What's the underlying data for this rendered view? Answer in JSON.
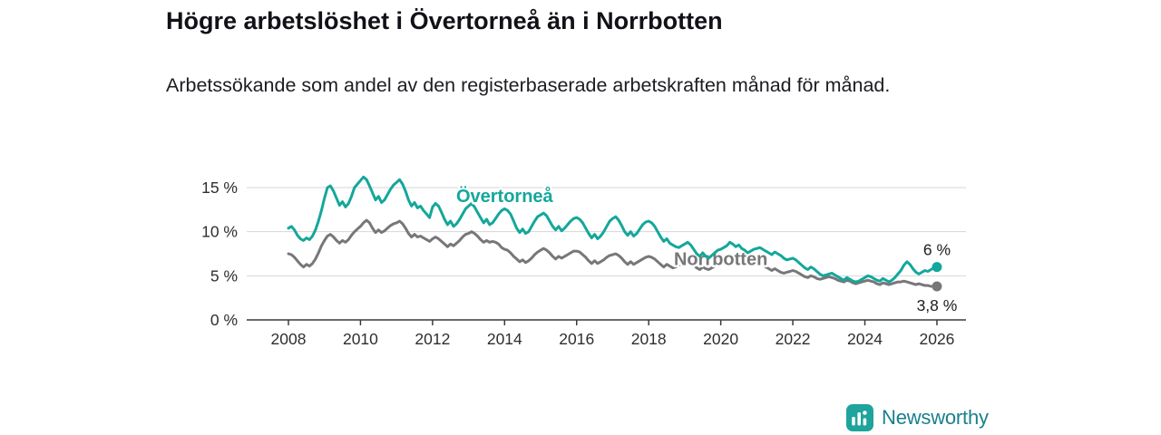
{
  "header": {
    "title": "Högre arbetslöshet i Övertorneå än i Norrbotten",
    "subtitle": "Arbetssökande som andel av den registerbaserade arbetskraften månad för månad."
  },
  "brand": {
    "name": "Newsworthy",
    "icon_color": "#1fa4a0",
    "icon_hex": "#1da49c",
    "text_hex": "#1a7f8e"
  },
  "chart_data": {
    "type": "line",
    "title": "Högre arbetslöshet i Övertorneå än i Norrbotten",
    "x_start_year": 2008,
    "points_per_year": 12,
    "x_ticks": [
      2008,
      2010,
      2012,
      2014,
      2016,
      2018,
      2020,
      2022,
      2024,
      2026
    ],
    "y_ticks": [
      0,
      5,
      10,
      15
    ],
    "y_tick_suffix": " %",
    "ylim": [
      0,
      17
    ],
    "grid": true,
    "axis_color": "#3a3a3e",
    "grid_color": "#d6d6d8",
    "series": [
      {
        "name": "Norrbotten",
        "color": "#77777a",
        "label": {
          "x": 2020.0,
          "y": 6.2
        },
        "end_label": "3,8 %",
        "end_label_dy": 27,
        "values": [
          7.5,
          7.4,
          7.1,
          6.7,
          6.3,
          6.0,
          6.3,
          6.1,
          6.4,
          6.9,
          7.6,
          8.4,
          9.0,
          9.5,
          9.7,
          9.4,
          9.0,
          8.7,
          9.0,
          8.8,
          9.1,
          9.6,
          10.0,
          10.3,
          10.6,
          11.0,
          11.3,
          11.0,
          10.4,
          9.9,
          10.2,
          9.9,
          10.1,
          10.4,
          10.7,
          10.9,
          11.0,
          11.2,
          10.9,
          10.4,
          9.8,
          9.4,
          9.7,
          9.4,
          9.5,
          9.3,
          9.1,
          8.9,
          9.2,
          9.4,
          9.2,
          8.9,
          8.6,
          8.3,
          8.6,
          8.4,
          8.7,
          9.0,
          9.4,
          9.7,
          9.8,
          10.0,
          9.8,
          9.5,
          9.1,
          8.8,
          9.0,
          8.8,
          8.9,
          8.8,
          8.6,
          8.2,
          8.0,
          7.9,
          7.6,
          7.2,
          6.9,
          6.6,
          6.8,
          6.5,
          6.7,
          7.0,
          7.4,
          7.7,
          7.9,
          8.1,
          7.9,
          7.6,
          7.2,
          6.9,
          7.2,
          7.0,
          7.2,
          7.4,
          7.6,
          7.8,
          7.8,
          7.7,
          7.4,
          7.1,
          6.7,
          6.4,
          6.7,
          6.4,
          6.6,
          6.8,
          7.1,
          7.3,
          7.4,
          7.5,
          7.3,
          7.0,
          6.6,
          6.3,
          6.6,
          6.3,
          6.5,
          6.7,
          6.9,
          7.1,
          7.2,
          7.1,
          6.9,
          6.6,
          6.3,
          6.0,
          6.3,
          6.1,
          5.9,
          6.0,
          6.2,
          6.4,
          6.5,
          6.6,
          6.4,
          6.2,
          5.9,
          5.7,
          6.0,
          5.8,
          5.7,
          5.9,
          6.1,
          6.3,
          6.4,
          6.5,
          6.7,
          7.1,
          7.0,
          6.8,
          6.9,
          6.6,
          6.4,
          6.2,
          6.3,
          6.4,
          6.5,
          6.4,
          6.2,
          6.0,
          5.8,
          5.6,
          5.8,
          5.6,
          5.4,
          5.3,
          5.4,
          5.5,
          5.6,
          5.5,
          5.3,
          5.1,
          4.9,
          4.8,
          5.0,
          4.9,
          4.7,
          4.6,
          4.7,
          4.8,
          4.9,
          4.8,
          4.7,
          4.5,
          4.4,
          4.3,
          4.5,
          4.4,
          4.2,
          4.1,
          4.2,
          4.3,
          4.4,
          4.5,
          4.4,
          4.3,
          4.1,
          4.0,
          4.2,
          4.1,
          4.0,
          4.1,
          4.2,
          4.3,
          4.3,
          4.4,
          4.3,
          4.2,
          4.1,
          4.0,
          4.1,
          4.0,
          3.9,
          3.9,
          3.8,
          3.8,
          3.8
        ]
      },
      {
        "name": "Övertorneå",
        "color": "#14a79b",
        "label": {
          "x": 2014.0,
          "y": 13.35
        },
        "end_label": "6 %",
        "end_label_dy": -13,
        "values": [
          10.4,
          10.6,
          10.2,
          9.6,
          9.2,
          9.0,
          9.3,
          9.1,
          9.5,
          10.2,
          11.2,
          12.4,
          13.8,
          15.0,
          15.2,
          14.6,
          13.8,
          13.0,
          13.4,
          12.8,
          13.2,
          14.0,
          15.0,
          15.4,
          15.8,
          16.2,
          15.9,
          15.2,
          14.4,
          13.6,
          14.0,
          13.3,
          13.6,
          14.2,
          14.8,
          15.3,
          15.6,
          15.9,
          15.4,
          14.6,
          13.6,
          12.9,
          13.3,
          12.7,
          12.9,
          12.4,
          12.0,
          11.6,
          12.8,
          13.2,
          12.9,
          12.2,
          11.4,
          10.8,
          11.2,
          10.6,
          10.9,
          11.4,
          12.0,
          12.6,
          12.9,
          13.2,
          12.8,
          12.2,
          11.6,
          11.0,
          11.4,
          10.8,
          11.0,
          11.5,
          12.0,
          12.4,
          12.6,
          12.4,
          12.0,
          11.2,
          10.4,
          9.9,
          10.3,
          9.8,
          10.0,
          10.6,
          11.2,
          11.7,
          11.9,
          12.1,
          11.8,
          11.2,
          10.6,
          10.2,
          10.6,
          10.1,
          10.4,
          10.8,
          11.2,
          11.5,
          11.6,
          11.4,
          11.0,
          10.4,
          9.8,
          9.3,
          9.7,
          9.2,
          9.5,
          10.0,
          10.6,
          11.2,
          11.5,
          11.7,
          11.3,
          10.7,
          10.0,
          9.6,
          10.0,
          9.5,
          9.8,
          10.3,
          10.8,
          11.1,
          11.2,
          11.0,
          10.6,
          10.0,
          9.4,
          8.9,
          9.2,
          8.7,
          8.5,
          8.3,
          8.2,
          8.4,
          8.6,
          8.8,
          8.5,
          8.0,
          7.5,
          7.2,
          7.6,
          7.2,
          7.0,
          7.3,
          7.6,
          7.9,
          8.0,
          8.2,
          8.4,
          8.8,
          8.6,
          8.3,
          8.5,
          8.1,
          7.9,
          7.6,
          7.8,
          8.0,
          8.1,
          8.2,
          8.0,
          7.8,
          7.6,
          7.4,
          7.7,
          7.5,
          7.3,
          7.0,
          6.8,
          6.9,
          7.0,
          6.8,
          6.5,
          6.2,
          5.9,
          5.7,
          6.0,
          5.8,
          5.5,
          5.2,
          5.0,
          5.1,
          5.2,
          5.3,
          5.1,
          4.9,
          4.7,
          4.5,
          4.8,
          4.6,
          4.4,
          4.3,
          4.4,
          4.6,
          4.8,
          5.0,
          4.9,
          4.7,
          4.5,
          4.4,
          4.7,
          4.5,
          4.3,
          4.5,
          4.8,
          5.2,
          5.6,
          6.2,
          6.6,
          6.3,
          5.8,
          5.4,
          5.2,
          5.4,
          5.6,
          5.5,
          5.7,
          5.9,
          6.0
        ]
      }
    ]
  }
}
